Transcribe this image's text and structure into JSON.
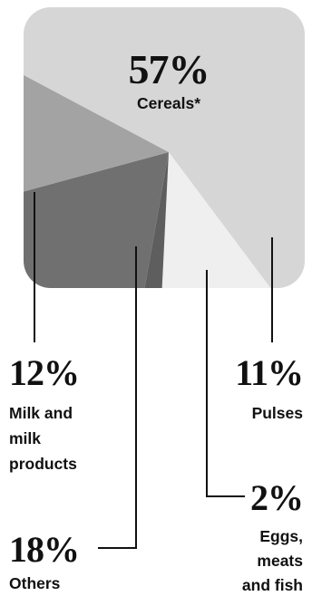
{
  "chart_data": {
    "type": "pie",
    "slices": [
      {
        "name": "Cereals*",
        "value": 57,
        "value_label": "57%",
        "label_lines": [
          "Cereals*"
        ],
        "color": "#d6d6d6"
      },
      {
        "name": "Pulses",
        "value": 11,
        "value_label": "11%",
        "label_lines": [
          "Pulses"
        ],
        "color": "#efefef"
      },
      {
        "name": "Eggs, meats and fish",
        "value": 2,
        "value_label": "2%",
        "label_lines": [
          "Eggs,",
          "meats",
          "and fish"
        ],
        "color": "#5e5e5e"
      },
      {
        "name": "Others",
        "value": 18,
        "value_label": "18%",
        "label_lines": [
          "Others"
        ],
        "color": "#707070"
      },
      {
        "name": "Milk and milk products",
        "value": 12,
        "value_label": "12%",
        "label_lines": [
          "Milk and",
          "milk",
          "products"
        ],
        "color": "#a3a3a3"
      }
    ]
  }
}
